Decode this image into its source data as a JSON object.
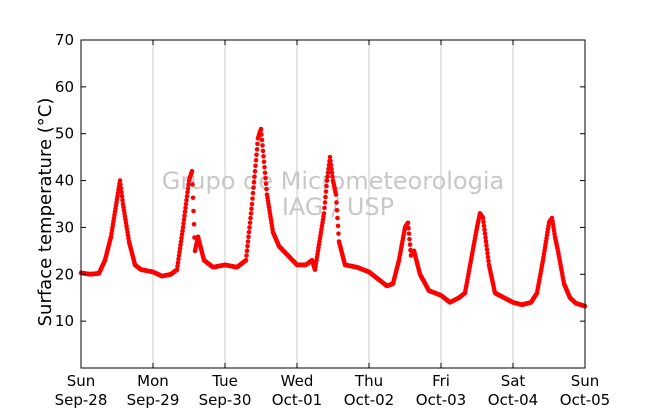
{
  "chart_data": {
    "type": "scatter",
    "title": "",
    "xlabel": "",
    "ylabel": "Surface temperature (°C)",
    "ylim": [
      0,
      70
    ],
    "y_ticks": [
      10,
      20,
      30,
      40,
      50,
      60,
      70
    ],
    "xlim": [
      "2014-09-28",
      "2014-10-05"
    ],
    "x_ticks": [
      {
        "date": "2014-09-28",
        "day": "Sun",
        "date_label": "Sep-28"
      },
      {
        "date": "2014-09-29",
        "day": "Mon",
        "date_label": "Sep-29"
      },
      {
        "date": "2014-09-30",
        "day": "Tue",
        "date_label": "Sep-30"
      },
      {
        "date": "2014-10-01",
        "day": "Wed",
        "date_label": "Oct-01"
      },
      {
        "date": "2014-10-02",
        "day": "Thu",
        "date_label": "Oct-02"
      },
      {
        "date": "2014-10-03",
        "day": "Fri",
        "date_label": "Oct-03"
      },
      {
        "date": "2014-10-04",
        "day": "Sat",
        "date_label": "Oct-04"
      },
      {
        "date": "2014-10-05",
        "day": "Sun",
        "date_label": "Oct-05"
      }
    ],
    "grid": "vertical",
    "watermark": [
      "Grupo de Micrometeorologia",
      "IAG / USP"
    ],
    "series": [
      {
        "color": "#ff0000",
        "marker": "circle",
        "points": [
          [
            "2014-09-28 00:00",
            20.3
          ],
          [
            "2014-09-28 03:00",
            20.0
          ],
          [
            "2014-09-28 06:00",
            20.2
          ],
          [
            "2014-09-28 08:00",
            23.0
          ],
          [
            "2014-09-28 10:00",
            28.0
          ],
          [
            "2014-09-28 12:00",
            36.0
          ],
          [
            "2014-09-28 13:00",
            40.0
          ],
          [
            "2014-09-28 14:00",
            35.0
          ],
          [
            "2014-09-28 16:00",
            27.0
          ],
          [
            "2014-09-28 18:00",
            22.0
          ],
          [
            "2014-09-28 20:00",
            21.0
          ],
          [
            "2014-09-29 00:00",
            20.5
          ],
          [
            "2014-09-29 03:00",
            19.6
          ],
          [
            "2014-09-29 06:00",
            20.0
          ],
          [
            "2014-09-29 08:00",
            21.0
          ],
          [
            "2014-09-29 10:00",
            30.0
          ],
          [
            "2014-09-29 12:00",
            40.0
          ],
          [
            "2014-09-29 13:00",
            42.0
          ],
          [
            "2014-09-29 14:00",
            25.0
          ],
          [
            "2014-09-29 15:00",
            28.0
          ],
          [
            "2014-09-29 17:00",
            23.0
          ],
          [
            "2014-09-29 20:00",
            21.5
          ],
          [
            "2014-09-30 00:00",
            22.0
          ],
          [
            "2014-09-30 04:00",
            21.5
          ],
          [
            "2014-09-30 07:00",
            23.0
          ],
          [
            "2014-09-30 09:00",
            35.0
          ],
          [
            "2014-09-30 11:00",
            49.0
          ],
          [
            "2014-09-30 12:00",
            51.0
          ],
          [
            "2014-09-30 13:00",
            44.0
          ],
          [
            "2014-09-30 14:00",
            37.0
          ],
          [
            "2014-09-30 16:00",
            29.0
          ],
          [
            "2014-09-30 18:00",
            26.0
          ],
          [
            "2014-09-30 21:00",
            24.0
          ],
          [
            "2014-10-01 00:00",
            22.0
          ],
          [
            "2014-10-01 03:00",
            22.0
          ],
          [
            "2014-10-01 05:00",
            23.0
          ],
          [
            "2014-10-01 06:00",
            21.0
          ],
          [
            "2014-10-01 07:00",
            25.0
          ],
          [
            "2014-10-01 09:00",
            33.0
          ],
          [
            "2014-10-01 10:00",
            40.0
          ],
          [
            "2014-10-01 11:00",
            45.0
          ],
          [
            "2014-10-01 12:00",
            40.0
          ],
          [
            "2014-10-01 13:00",
            37.0
          ],
          [
            "2014-10-01 14:00",
            27.0
          ],
          [
            "2014-10-01 16:00",
            22.0
          ],
          [
            "2014-10-01 20:00",
            21.5
          ],
          [
            "2014-10-02 00:00",
            20.5
          ],
          [
            "2014-10-02 03:00",
            19.0
          ],
          [
            "2014-10-02 06:00",
            17.5
          ],
          [
            "2014-10-02 08:00",
            18.0
          ],
          [
            "2014-10-02 10:00",
            23.0
          ],
          [
            "2014-10-02 12:00",
            30.0
          ],
          [
            "2014-10-02 13:00",
            31.0
          ],
          [
            "2014-10-02 14:00",
            24.0
          ],
          [
            "2014-10-02 15:00",
            25.0
          ],
          [
            "2014-10-02 17:00",
            20.0
          ],
          [
            "2014-10-02 20:00",
            16.5
          ],
          [
            "2014-10-03 00:00",
            15.5
          ],
          [
            "2014-10-03 03:00",
            14.0
          ],
          [
            "2014-10-03 06:00",
            15.0
          ],
          [
            "2014-10-03 08:00",
            16.0
          ],
          [
            "2014-10-03 10:00",
            23.0
          ],
          [
            "2014-10-03 12:00",
            30.0
          ],
          [
            "2014-10-03 13:00",
            33.0
          ],
          [
            "2014-10-03 14:00",
            32.0
          ],
          [
            "2014-10-03 16:00",
            22.0
          ],
          [
            "2014-10-03 18:00",
            16.0
          ],
          [
            "2014-10-03 21:00",
            15.0
          ],
          [
            "2014-10-04 00:00",
            14.0
          ],
          [
            "2014-10-04 03:00",
            13.5
          ],
          [
            "2014-10-04 06:00",
            14.0
          ],
          [
            "2014-10-04 08:00",
            16.0
          ],
          [
            "2014-10-04 10:00",
            23.0
          ],
          [
            "2014-10-04 11:00",
            27.0
          ],
          [
            "2014-10-04 12:00",
            31.0
          ],
          [
            "2014-10-04 13:00",
            32.0
          ],
          [
            "2014-10-04 14:00",
            28.0
          ],
          [
            "2014-10-04 15:00",
            25.0
          ],
          [
            "2014-10-04 17:00",
            18.0
          ],
          [
            "2014-10-04 19:00",
            15.0
          ],
          [
            "2014-10-04 21:00",
            13.8
          ],
          [
            "2014-10-05 00:00",
            13.2
          ]
        ]
      }
    ]
  }
}
